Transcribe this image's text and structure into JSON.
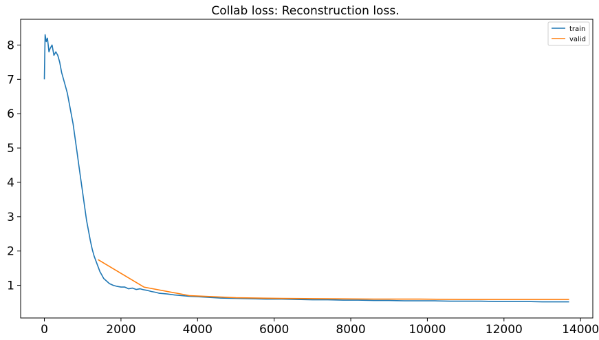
{
  "chart_data": {
    "type": "line",
    "title": "Collab loss: Reconstruction loss.",
    "xlabel": "",
    "ylabel": "",
    "xlim": [
      -620,
      14320
    ],
    "ylim": [
      0.05,
      8.75
    ],
    "x_ticks": [
      0,
      2000,
      4000,
      6000,
      8000,
      10000,
      12000,
      14000
    ],
    "x_tick_labels": [
      "0",
      "2000",
      "4000",
      "6000",
      "8000",
      "10000",
      "12000",
      "14000"
    ],
    "y_ticks": [
      1,
      2,
      3,
      4,
      5,
      6,
      7,
      8
    ],
    "y_tick_labels": [
      "1",
      "2",
      "3",
      "4",
      "5",
      "6",
      "7",
      "8"
    ],
    "grid": false,
    "legend_position": "top-right",
    "series": [
      {
        "name": "train",
        "color": "#1f77b4",
        "x": [
          0,
          20,
          50,
          80,
          120,
          150,
          200,
          250,
          300,
          350,
          400,
          450,
          500,
          550,
          600,
          650,
          700,
          750,
          800,
          850,
          900,
          950,
          1000,
          1050,
          1100,
          1150,
          1200,
          1250,
          1300,
          1350,
          1400,
          1450,
          1500,
          1550,
          1600,
          1700,
          1800,
          1900,
          2000,
          2100,
          2200,
          2300,
          2400,
          2500,
          2600,
          2700,
          2800,
          2900,
          3000,
          3200,
          3400,
          3600,
          3800,
          4000,
          4300,
          4600,
          5000,
          5400,
          5800,
          6200,
          6600,
          7000,
          7400,
          7800,
          8200,
          8600,
          9000,
          9400,
          9800,
          10200,
          10600,
          11000,
          11400,
          11800,
          12200,
          12600,
          13000,
          13400,
          13700
        ],
        "y": [
          7.0,
          8.3,
          8.1,
          8.2,
          7.8,
          7.9,
          8.0,
          7.7,
          7.8,
          7.7,
          7.5,
          7.2,
          7.0,
          6.8,
          6.6,
          6.3,
          6.0,
          5.7,
          5.3,
          4.9,
          4.5,
          4.1,
          3.7,
          3.3,
          2.9,
          2.6,
          2.3,
          2.05,
          1.85,
          1.7,
          1.55,
          1.4,
          1.3,
          1.2,
          1.15,
          1.05,
          1.0,
          0.97,
          0.95,
          0.95,
          0.9,
          0.92,
          0.88,
          0.9,
          0.87,
          0.85,
          0.82,
          0.8,
          0.77,
          0.75,
          0.72,
          0.7,
          0.68,
          0.67,
          0.65,
          0.63,
          0.62,
          0.61,
          0.6,
          0.6,
          0.59,
          0.58,
          0.58,
          0.57,
          0.57,
          0.56,
          0.56,
          0.55,
          0.55,
          0.55,
          0.54,
          0.54,
          0.54,
          0.53,
          0.53,
          0.53,
          0.52,
          0.52,
          0.52
        ]
      },
      {
        "name": "valid",
        "color": "#ff7f0e",
        "x": [
          1400,
          2600,
          3800,
          5000,
          6200,
          7400,
          8600,
          9800,
          11000,
          12200,
          13700
        ],
        "y": [
          1.75,
          0.95,
          0.7,
          0.64,
          0.62,
          0.61,
          0.6,
          0.6,
          0.59,
          0.59,
          0.59
        ]
      }
    ]
  }
}
